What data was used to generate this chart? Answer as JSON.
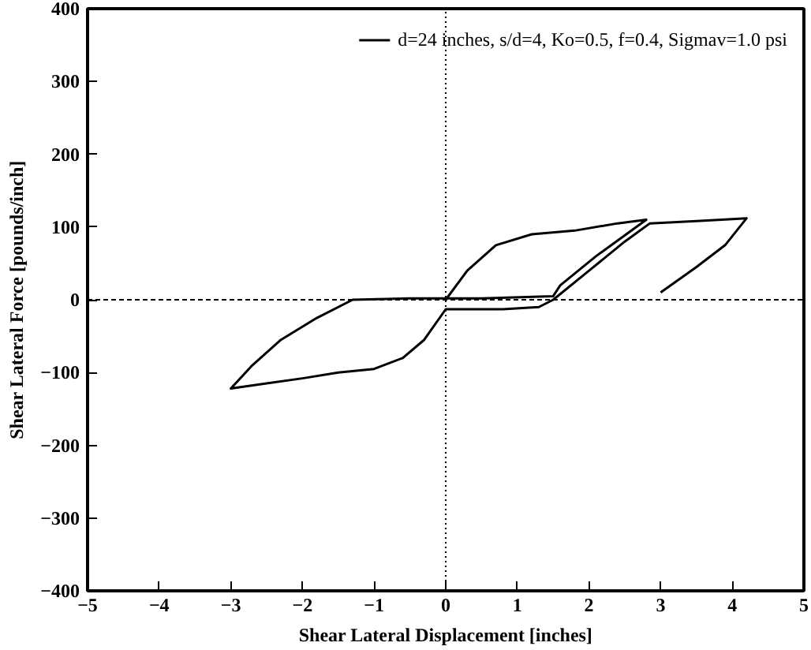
{
  "chart_data": {
    "type": "line",
    "xlabel": "Shear Lateral Displacement [inches]",
    "ylabel": "Shear Lateral Force [pounds/inch]",
    "xlim": [
      -5,
      5
    ],
    "ylim": [
      -400,
      400
    ],
    "xticks": [
      -5,
      -4,
      -3,
      -2,
      -1,
      0,
      1,
      2,
      3,
      4,
      5
    ],
    "yticks": [
      -400,
      -300,
      -200,
      -100,
      0,
      100,
      200,
      300,
      400
    ],
    "grid": false,
    "legend": "top right",
    "line_style": "solid",
    "marker": "none",
    "ref_lines": [
      {
        "axis": "x",
        "value": 0,
        "line_style": "dotted"
      },
      {
        "axis": "y",
        "value": 0,
        "line_style": "dashed"
      }
    ],
    "series": [
      {
        "name": "d=24 inches, s/d=4, Ko=0.5, f=0.4, Sigmav=1.0 psi",
        "color": "#000000",
        "x": [
          0,
          0.3,
          0.7,
          1.2,
          1.8,
          2.4,
          2.8,
          2.1,
          1.6,
          1.5,
          0.5,
          -0.5,
          -1.3,
          -1.8,
          -2.3,
          -2.7,
          -3.0,
          -2.5,
          -2.0,
          -1.5,
          -1.0,
          -0.6,
          -0.3,
          0,
          0.8,
          1.3,
          1.5,
          2.0,
          2.5,
          2.85,
          3.5,
          4.2,
          3.9,
          3.5,
          3.0
        ],
        "values": [
          0,
          40,
          75,
          90,
          95,
          105,
          110,
          60,
          20,
          5,
          2,
          2,
          0,
          -25,
          -55,
          -90,
          -122,
          -115,
          -108,
          -100,
          -95,
          -80,
          -55,
          -13,
          -13,
          -10,
          0,
          40,
          80,
          105,
          108,
          112,
          75,
          45,
          10
        ]
      }
    ]
  }
}
